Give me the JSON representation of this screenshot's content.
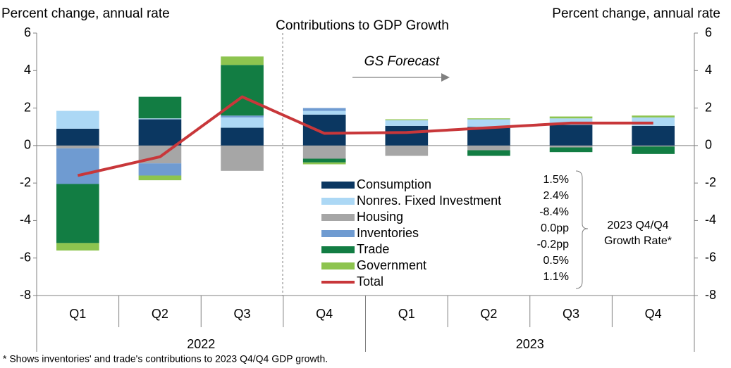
{
  "chart_data": {
    "type": "bar",
    "stacked": true,
    "title": "Contributions to GDP Growth",
    "ylabel": "Percent change, annual rate",
    "y2label": "Percent change, annual rate",
    "forecast_label": "GS Forecast",
    "categories": [
      "Q1",
      "Q2",
      "Q3",
      "Q4",
      "Q1",
      "Q2",
      "Q3",
      "Q4"
    ],
    "groups": [
      {
        "label": "2022",
        "span": [
          0,
          4
        ]
      },
      {
        "label": "2023",
        "span": [
          4,
          8
        ]
      }
    ],
    "ylim": [
      -8,
      6
    ],
    "yticks": [
      -8,
      -6,
      -4,
      -2,
      0,
      2,
      4,
      6
    ],
    "y2lim": [
      -8,
      6
    ],
    "y2ticks": [
      -8,
      -6,
      -4,
      -2,
      0,
      2,
      4,
      6
    ],
    "series": [
      {
        "name": "Consumption",
        "color": "#0b3761",
        "values": [
          0.9,
          1.4,
          0.95,
          1.65,
          1.05,
          1.0,
          1.1,
          1.05
        ]
      },
      {
        "name": "Nonres. Fixed Investment",
        "color": "#acd8f5",
        "values": [
          0.95,
          0.05,
          0.55,
          0.2,
          0.3,
          0.4,
          0.35,
          0.45
        ]
      },
      {
        "name": "Housing",
        "color": "#a6a6a6",
        "values": [
          -0.15,
          -0.95,
          -1.35,
          -0.7,
          -0.55,
          -0.25,
          -0.1,
          -0.05
        ]
      },
      {
        "name": "Inventories",
        "color": "#6f9bd1",
        "values": [
          -1.9,
          -0.65,
          0.1,
          0.15,
          0.0,
          0.0,
          0.0,
          0.0
        ]
      },
      {
        "name": "Trade",
        "color": "#127d43",
        "values": [
          -3.15,
          1.15,
          2.7,
          -0.2,
          0.0,
          -0.3,
          -0.25,
          -0.4
        ]
      },
      {
        "name": "Government",
        "color": "#8dc44f",
        "values": [
          -0.4,
          -0.25,
          0.45,
          -0.1,
          0.05,
          0.05,
          0.1,
          0.1
        ]
      },
      {
        "name": "Total",
        "color": "#c8373a",
        "type": "line",
        "values": [
          -1.6,
          -0.6,
          2.6,
          0.65,
          0.7,
          0.95,
          1.2,
          1.2
        ]
      }
    ],
    "growth_rates": [
      "1.5%",
      "2.4%",
      "-8.4%",
      "0.0pp",
      "-0.2pp",
      "0.5%",
      "1.1%"
    ],
    "growth_rate_label": [
      "2023 Q4/Q4",
      "Growth Rate*"
    ],
    "footnote": "* Shows inventories' and trade's contributions to 2023 Q4/Q4 GDP growth."
  }
}
